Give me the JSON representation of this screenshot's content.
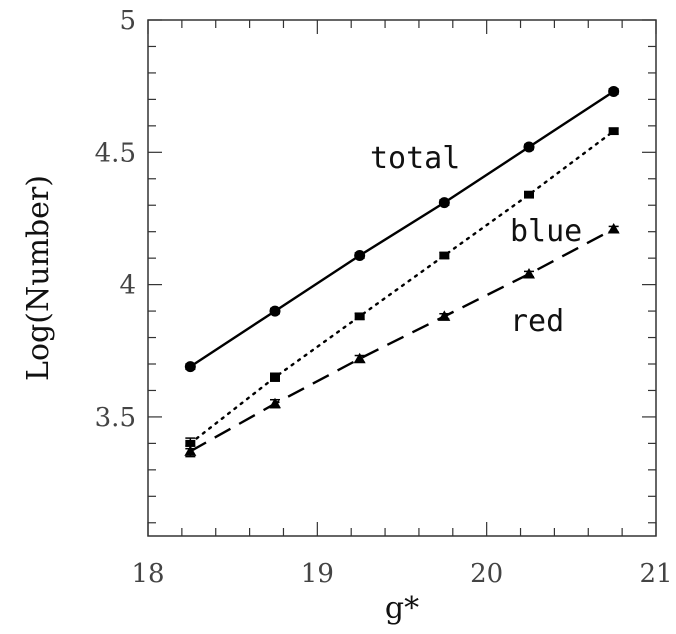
{
  "chart_data": {
    "type": "line",
    "xlabel": "g*",
    "ylabel": "Log(Number)",
    "xlim": [
      18,
      21
    ],
    "ylim": [
      3.05,
      5
    ],
    "xticks": [
      18,
      19,
      20,
      21
    ],
    "yticks": [
      3.5,
      4,
      4.5,
      5
    ],
    "xtick_labels": [
      "18",
      "19",
      "20",
      "21"
    ],
    "ytick_labels": [
      "3.5",
      "4",
      "4.5",
      "5"
    ],
    "grid": false,
    "x": [
      18.25,
      18.75,
      19.25,
      19.75,
      20.25,
      20.75
    ],
    "series": [
      {
        "name": "total",
        "line_style": "solid",
        "marker": "circle",
        "values": [
          3.69,
          3.9,
          4.11,
          4.31,
          4.52,
          4.73
        ],
        "errors": [
          0.01,
          0.01,
          0.01,
          0.01,
          0.01,
          0.01
        ]
      },
      {
        "name": "blue",
        "line_style": "dotted",
        "marker": "square",
        "values": [
          3.4,
          3.65,
          3.88,
          4.11,
          4.34,
          4.58
        ],
        "errors": [
          0.02,
          0.015,
          0.012,
          0.012,
          0.012,
          0.012
        ]
      },
      {
        "name": "red",
        "line_style": "dashed",
        "marker": "triangle",
        "values": [
          3.37,
          3.55,
          3.72,
          3.88,
          4.04,
          4.21
        ],
        "errors": [
          0.02,
          0.015,
          0.012,
          0.01,
          0.01,
          0.01
        ]
      }
    ]
  }
}
